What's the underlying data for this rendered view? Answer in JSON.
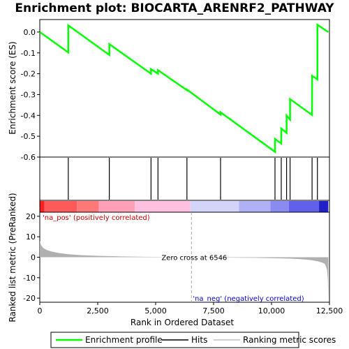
{
  "chart_data": {
    "type": "line",
    "title": "Enrichment plot: BIOCARTA_ARENRF2_PATHWAY",
    "xlabel": "Rank in Ordered Dataset",
    "ylabel_top": "Enrichment score (ES)",
    "ylabel_bottom": "Ranked list metric (PreRanked)",
    "xlim": [
      0,
      12500
    ],
    "x_ticks": [
      0,
      2500,
      5000,
      7500,
      10000,
      12500
    ],
    "x_tick_labels": [
      "0",
      "2,500",
      "5,000",
      "7,500",
      "10,000",
      "12,500"
    ],
    "es_ylim": [
      -0.6,
      0.06
    ],
    "es_ticks": [
      0.0,
      -0.1,
      -0.2,
      -0.3,
      -0.4,
      -0.5,
      -0.6
    ],
    "es_tick_labels": [
      "0.0",
      "-0.1",
      "-0.2",
      "-0.3",
      "-0.4",
      "-0.5",
      "-0.6"
    ],
    "metric_ylim": [
      -22,
      22
    ],
    "metric_ticks": [
      20,
      10,
      0,
      -10,
      -20
    ],
    "metric_tick_labels": [
      "20",
      "10",
      "0",
      "-10",
      "-20"
    ],
    "hits": [
      1230,
      3000,
      4800,
      5100,
      6350,
      7800,
      10150,
      10420,
      10650,
      10800,
      11750,
      11980
    ],
    "es_profile": {
      "x": [
        0,
        1230,
        1230,
        3000,
        3000,
        4800,
        4800,
        5100,
        5100,
        6350,
        6350,
        7800,
        7800,
        10150,
        10150,
        10420,
        10420,
        10650,
        10650,
        10800,
        10800,
        11750,
        11750,
        11980,
        11980,
        12450
      ],
      "y": [
        0.0,
        -0.098,
        0.032,
        -0.11,
        -0.058,
        -0.2,
        -0.178,
        -0.2,
        -0.183,
        -0.279,
        -0.276,
        -0.396,
        -0.385,
        -0.575,
        -0.513,
        -0.535,
        -0.463,
        -0.484,
        -0.401,
        -0.42,
        -0.322,
        -0.398,
        -0.21,
        -0.227,
        0.035,
        0.0
      ]
    },
    "metric_profile": {
      "x": [
        0,
        50,
        150,
        300,
        500,
        800,
        1200,
        1800,
        2500,
        3500,
        4500,
        5500,
        6546,
        7500,
        8500,
        9500,
        10200,
        10800,
        11300,
        11700,
        12000,
        12200,
        12300,
        12350,
        12400,
        12430,
        12450
      ],
      "y": [
        8,
        6,
        4.5,
        3.5,
        2.8,
        2.1,
        1.5,
        1.0,
        0.7,
        0.4,
        0.2,
        0.1,
        0.0,
        -0.1,
        -0.2,
        -0.35,
        -0.5,
        -0.7,
        -1.0,
        -1.4,
        -2.0,
        -2.7,
        -3.3,
        -4.5,
        -6.5,
        -11,
        -21
      ]
    },
    "zero_cross_rank": 6546,
    "annotations": {
      "pos": "'na_pos' (positively correlated)",
      "neg": "'na_neg' (negatively correlated)",
      "zero": "Zero cross at 6546"
    },
    "legend": [
      "Enrichment profile",
      "Hits",
      "Ranking metric scores"
    ],
    "colors": {
      "es_line": "#00ff00",
      "hit": "#000000",
      "metric_fill": "#b0b0b0",
      "pos_text": "#cc0000",
      "neg_text": "#0000cc",
      "zero_line": "#aaaaaa"
    },
    "heatmap_segments": [
      {
        "x0": 0,
        "x1": 200,
        "color": "#ff2020"
      },
      {
        "x0": 200,
        "x1": 1600,
        "color": "#ff5a5a"
      },
      {
        "x0": 1600,
        "x1": 2550,
        "color": "#ff7878"
      },
      {
        "x0": 2550,
        "x1": 4100,
        "color": "#ffa0b6"
      },
      {
        "x0": 4100,
        "x1": 6500,
        "color": "#ffc0e0"
      },
      {
        "x0": 6500,
        "x1": 8600,
        "color": "#d4d4f8"
      },
      {
        "x0": 8600,
        "x1": 9950,
        "color": "#b0b0f4"
      },
      {
        "x0": 9950,
        "x1": 10750,
        "color": "#8a8af0"
      },
      {
        "x0": 10750,
        "x1": 12050,
        "color": "#6060ea"
      },
      {
        "x0": 12050,
        "x1": 12450,
        "color": "#2020c8"
      }
    ]
  }
}
